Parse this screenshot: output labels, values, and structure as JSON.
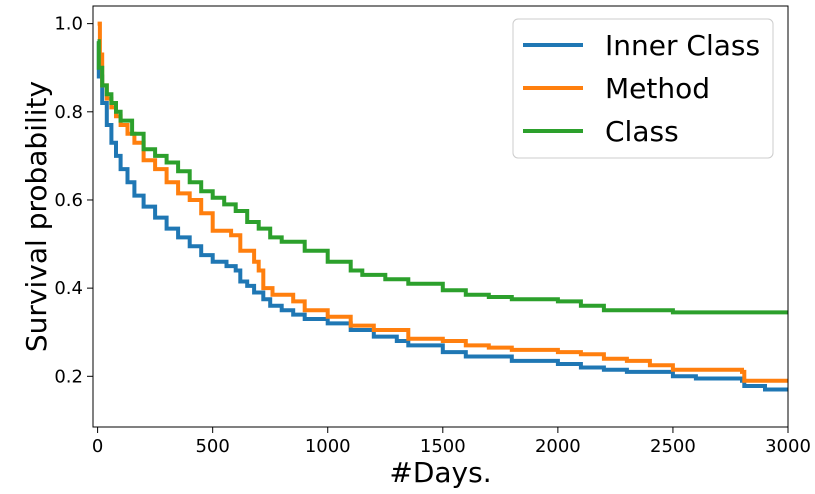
{
  "chart_data": {
    "type": "line",
    "title": "",
    "xlabel": "#Days.",
    "ylabel": "Survival probability",
    "xlim": [
      -20,
      3000
    ],
    "ylim": [
      0.085,
      1.04
    ],
    "xticks": [
      0,
      500,
      1000,
      1500,
      2000,
      2500,
      3000
    ],
    "yticks": [
      0.2,
      0.4,
      0.6,
      0.8,
      1.0
    ],
    "xtick_labels": [
      "0",
      "500",
      "1000",
      "1500",
      "2000",
      "2500",
      "3000"
    ],
    "ytick_labels": [
      "0.2",
      "0.4",
      "0.6",
      "0.8",
      "1.0"
    ],
    "grid": false,
    "legend_position": "top-right",
    "step": true,
    "series": [
      {
        "name": "Inner Class",
        "color": "#1f77b4",
        "points": [
          [
            0,
            0.96
          ],
          [
            5,
            0.88
          ],
          [
            20,
            0.82
          ],
          [
            40,
            0.77
          ],
          [
            60,
            0.73
          ],
          [
            80,
            0.7
          ],
          [
            100,
            0.67
          ],
          [
            130,
            0.64
          ],
          [
            160,
            0.61
          ],
          [
            200,
            0.585
          ],
          [
            250,
            0.56
          ],
          [
            300,
            0.535
          ],
          [
            350,
            0.515
          ],
          [
            400,
            0.495
          ],
          [
            450,
            0.475
          ],
          [
            500,
            0.46
          ],
          [
            560,
            0.45
          ],
          [
            600,
            0.44
          ],
          [
            620,
            0.415
          ],
          [
            650,
            0.405
          ],
          [
            680,
            0.39
          ],
          [
            720,
            0.375
          ],
          [
            750,
            0.36
          ],
          [
            800,
            0.35
          ],
          [
            850,
            0.34
          ],
          [
            900,
            0.33
          ],
          [
            1000,
            0.32
          ],
          [
            1100,
            0.305
          ],
          [
            1200,
            0.29
          ],
          [
            1300,
            0.28
          ],
          [
            1350,
            0.27
          ],
          [
            1500,
            0.255
          ],
          [
            1600,
            0.245
          ],
          [
            1800,
            0.235
          ],
          [
            2000,
            0.228
          ],
          [
            2100,
            0.22
          ],
          [
            2200,
            0.215
          ],
          [
            2300,
            0.21
          ],
          [
            2500,
            0.2
          ],
          [
            2600,
            0.195
          ],
          [
            2800,
            0.19
          ],
          [
            2810,
            0.178
          ],
          [
            2900,
            0.17
          ],
          [
            3000,
            0.17
          ]
        ]
      },
      {
        "name": "Method",
        "color": "#ff7f0e",
        "points": [
          [
            0,
            1.0
          ],
          [
            10,
            0.93
          ],
          [
            20,
            0.86
          ],
          [
            40,
            0.83
          ],
          [
            60,
            0.81
          ],
          [
            80,
            0.79
          ],
          [
            100,
            0.77
          ],
          [
            130,
            0.75
          ],
          [
            160,
            0.73
          ],
          [
            200,
            0.69
          ],
          [
            250,
            0.67
          ],
          [
            300,
            0.64
          ],
          [
            350,
            0.615
          ],
          [
            400,
            0.6
          ],
          [
            450,
            0.57
          ],
          [
            500,
            0.53
          ],
          [
            580,
            0.52
          ],
          [
            620,
            0.485
          ],
          [
            680,
            0.46
          ],
          [
            700,
            0.44
          ],
          [
            720,
            0.4
          ],
          [
            760,
            0.385
          ],
          [
            850,
            0.37
          ],
          [
            900,
            0.35
          ],
          [
            1000,
            0.335
          ],
          [
            1100,
            0.315
          ],
          [
            1200,
            0.305
          ],
          [
            1350,
            0.285
          ],
          [
            1500,
            0.28
          ],
          [
            1600,
            0.27
          ],
          [
            1700,
            0.265
          ],
          [
            1800,
            0.26
          ],
          [
            2000,
            0.255
          ],
          [
            2100,
            0.25
          ],
          [
            2200,
            0.24
          ],
          [
            2300,
            0.235
          ],
          [
            2400,
            0.225
          ],
          [
            2500,
            0.215
          ],
          [
            2800,
            0.21
          ],
          [
            2810,
            0.19
          ],
          [
            3000,
            0.19
          ]
        ]
      },
      {
        "name": "Class",
        "color": "#2ca02c",
        "points": [
          [
            0,
            0.96
          ],
          [
            5,
            0.9
          ],
          [
            20,
            0.86
          ],
          [
            40,
            0.84
          ],
          [
            60,
            0.82
          ],
          [
            80,
            0.8
          ],
          [
            100,
            0.78
          ],
          [
            150,
            0.75
          ],
          [
            200,
            0.715
          ],
          [
            250,
            0.7
          ],
          [
            300,
            0.685
          ],
          [
            350,
            0.665
          ],
          [
            400,
            0.64
          ],
          [
            450,
            0.62
          ],
          [
            500,
            0.605
          ],
          [
            550,
            0.59
          ],
          [
            600,
            0.575
          ],
          [
            650,
            0.55
          ],
          [
            700,
            0.535
          ],
          [
            750,
            0.515
          ],
          [
            800,
            0.505
          ],
          [
            900,
            0.485
          ],
          [
            1000,
            0.46
          ],
          [
            1100,
            0.44
          ],
          [
            1150,
            0.43
          ],
          [
            1250,
            0.42
          ],
          [
            1350,
            0.41
          ],
          [
            1500,
            0.395
          ],
          [
            1600,
            0.385
          ],
          [
            1700,
            0.38
          ],
          [
            1800,
            0.375
          ],
          [
            2000,
            0.37
          ],
          [
            2100,
            0.36
          ],
          [
            2200,
            0.35
          ],
          [
            2300,
            0.35
          ],
          [
            2500,
            0.345
          ],
          [
            3000,
            0.345
          ]
        ]
      }
    ]
  }
}
